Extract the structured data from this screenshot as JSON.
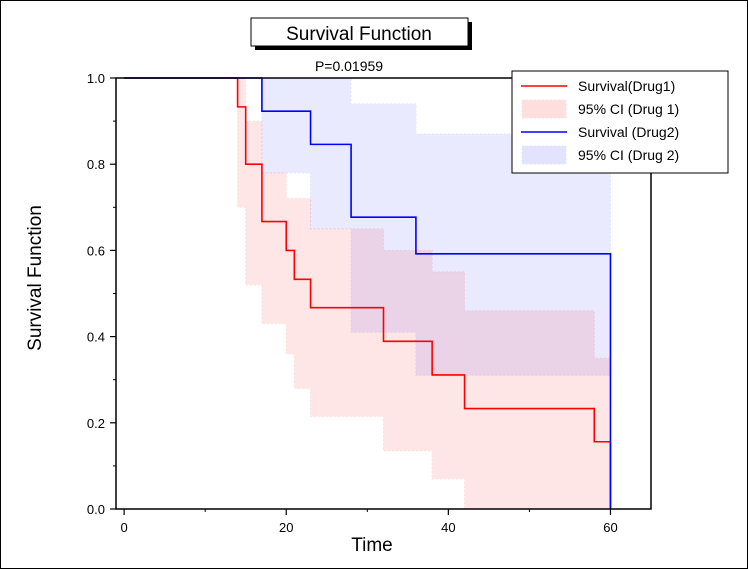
{
  "chart_data": {
    "type": "line",
    "title": "Survival Function",
    "annotation": "P=0.01959",
    "xlabel": "Time",
    "ylabel": "Survival Function",
    "xlim": [
      -1,
      65
    ],
    "ylim": [
      0,
      1.0
    ],
    "xticks": [
      0,
      20,
      40,
      60
    ],
    "xtick_labels": [
      "0",
      "20",
      "40",
      "60"
    ],
    "yticks": [
      0.0,
      0.2,
      0.4,
      0.6,
      0.8,
      1.0
    ],
    "ytick_labels": [
      "0.0",
      "0.2",
      "0.4",
      "0.6",
      "0.8",
      "1.0"
    ],
    "legend_position": "top-right",
    "series": [
      {
        "name": "Survival(Drug1)",
        "kind": "step",
        "color": "#ff0000",
        "x": [
          0,
          14,
          15,
          17,
          20,
          21,
          23,
          32,
          38,
          42,
          58,
          60
        ],
        "y": [
          1.0,
          0.933,
          0.8,
          0.667,
          0.6,
          0.533,
          0.467,
          0.389,
          0.311,
          0.233,
          0.156,
          0.0
        ]
      },
      {
        "name": "95% CI (Drug 1)",
        "kind": "band",
        "color": "#ffdede",
        "x": [
          0,
          14,
          15,
          17,
          20,
          21,
          23,
          32,
          38,
          42,
          58,
          60
        ],
        "lower": [
          1.0,
          0.7,
          0.52,
          0.43,
          0.36,
          0.28,
          0.215,
          0.135,
          0.07,
          0.0,
          0.0,
          0.0
        ],
        "upper": [
          1.0,
          1.0,
          0.9,
          0.78,
          0.72,
          0.72,
          0.65,
          0.6,
          0.55,
          0.46,
          0.35,
          0.0
        ]
      },
      {
        "name": "Survival (Drug2)",
        "kind": "step",
        "color": "#0000ff",
        "x": [
          0,
          17,
          23,
          28,
          36,
          60
        ],
        "y": [
          1.0,
          0.923,
          0.846,
          0.677,
          0.592,
          0.0
        ]
      },
      {
        "name": "95% CI (Drug 2)",
        "kind": "band",
        "color": "#e3e3ff",
        "x": [
          0,
          17,
          23,
          28,
          36,
          60
        ],
        "lower": [
          1.0,
          0.78,
          0.65,
          0.41,
          0.31,
          0.0
        ],
        "upper": [
          1.0,
          1.0,
          1.0,
          0.94,
          0.87,
          0.0
        ]
      }
    ]
  }
}
